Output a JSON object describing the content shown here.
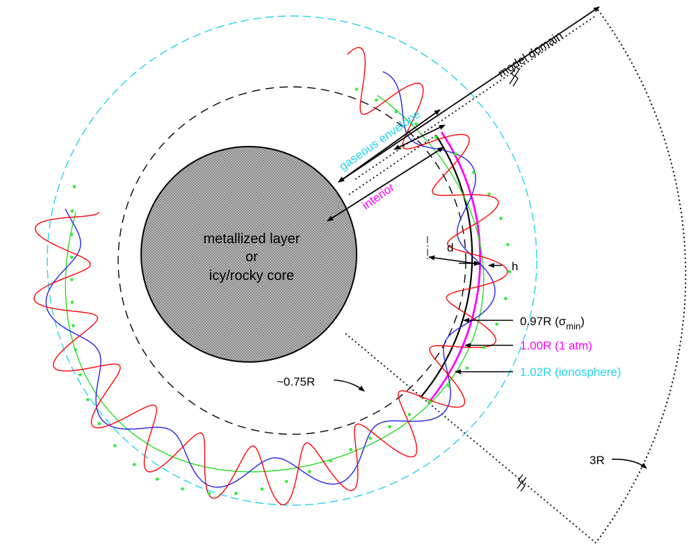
{
  "core": {
    "line1": "metallized layer",
    "line2": "or",
    "line3": "icy/rocky core"
  },
  "labels": {
    "model_domain": "model domain",
    "gaseous_envelope": "gaseous envelope",
    "interior": "interior",
    "d": "d",
    "h": "h",
    "r075": "~0.75R",
    "r097_main": "0.97R (σ",
    "r097_sub": "min",
    "r097_close": ")",
    "r100": "1.00R (1 atm)",
    "r102": "1.02R (ionosphere)",
    "r3": "3R"
  },
  "colors": {
    "black": "#000000",
    "cyan": "#22d3ee",
    "magenta": "#ff00ff",
    "red": "#ff0000",
    "blue": "#2222ee",
    "green": "#22dd22",
    "dots": "#33ee33",
    "core_fill": "#a9a9a9"
  }
}
